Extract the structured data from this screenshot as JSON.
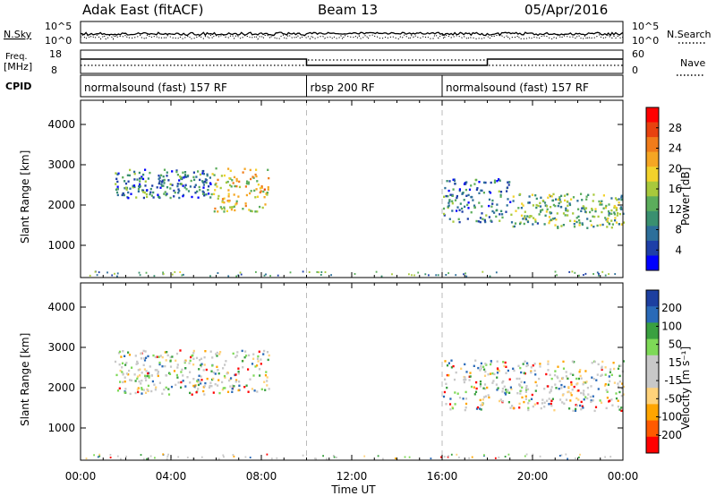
{
  "header": {
    "site": "Adak East (fitACF)",
    "beam": "Beam 13",
    "date": "05/Apr/2016"
  },
  "strips": {
    "nsky_label": "N.Sky",
    "nsky_ticks": [
      "10^5",
      "10^0"
    ],
    "nsearch_label": "N.Search",
    "nsearch_ticks": [
      "10^5",
      "10^0"
    ],
    "freq_label_line1": "Freq.",
    "freq_label_line2": "[MHz]",
    "freq_ticks": [
      "18",
      "8"
    ],
    "nave_label": "Nave",
    "nave_ticks": [
      "60",
      "0"
    ],
    "cpid_label": "CPID",
    "cpid_segments": [
      {
        "start_hour": 0,
        "end_hour": 10,
        "label": "normalsound (fast) 157 RF"
      },
      {
        "start_hour": 10,
        "end_hour": 16,
        "label": "rbsp 200 RF"
      },
      {
        "start_hour": 16,
        "end_hour": 24,
        "label": "normalsound (fast) 157 RF"
      }
    ]
  },
  "chart_data": [
    {
      "type": "heatmap",
      "name": "power",
      "xlabel": "Time UT",
      "ylabel": "Slant Range [km]",
      "x_ticks": [
        "00:00",
        "04:00",
        "08:00",
        "12:00",
        "16:00",
        "20:00",
        "00:00"
      ],
      "xlim_hours": [
        0,
        24
      ],
      "y_ticks": [
        1000,
        2000,
        3000,
        4000
      ],
      "ylim_km": [
        200,
        4600
      ],
      "colorbar": {
        "label": "Power [dB]",
        "ticks": [
          "28",
          "24",
          "20",
          "16",
          "12",
          "8",
          "4"
        ],
        "range": [
          0,
          30
        ],
        "colors": [
          "#0000ff",
          "#1e3fa8",
          "#2d6f9a",
          "#3a9070",
          "#5cad5c",
          "#a8c93c",
          "#f2d22c",
          "#f5a623",
          "#f07c1a",
          "#e8420f",
          "#ff0000"
        ]
      },
      "echo_regions": [
        {
          "start_hour": 1.5,
          "end_hour": 5.8,
          "min_km": 2200,
          "max_km": 2900,
          "typical_value": 8
        },
        {
          "start_hour": 5.8,
          "end_hour": 8.3,
          "min_km": 1850,
          "max_km": 2950,
          "typical_value": 18
        },
        {
          "start_hour": 16.0,
          "end_hour": 19.0,
          "min_km": 1600,
          "max_km": 2700,
          "typical_value": 8
        },
        {
          "start_hour": 19.0,
          "end_hour": 24.0,
          "min_km": 1450,
          "max_km": 2300,
          "typical_value": 12
        }
      ]
    },
    {
      "type": "heatmap",
      "name": "velocity",
      "xlabel": "Time UT",
      "ylabel": "Slant Range [km]",
      "x_ticks": [
        "00:00",
        "04:00",
        "08:00",
        "12:00",
        "16:00",
        "20:00",
        "00:00"
      ],
      "xlim_hours": [
        0,
        24
      ],
      "y_ticks": [
        1000,
        2000,
        3000,
        4000
      ],
      "ylim_km": [
        200,
        4600
      ],
      "colorbar": {
        "label": "Velocity [m s⁻¹]",
        "ticks": [
          "200",
          "100",
          "50",
          "15",
          "-15",
          "-50",
          "-100",
          "-200"
        ],
        "range": [
          -250,
          250
        ],
        "colors": [
          "#ff0000",
          "#ff5a00",
          "#ffa500",
          "#ffd27a",
          "#c8c8c8",
          "#c8c8c8",
          "#7ed957",
          "#3aa040",
          "#2a6ab8",
          "#1d3fa0"
        ]
      },
      "echo_regions": [
        {
          "start_hour": 1.5,
          "end_hour": 8.3,
          "min_km": 1850,
          "max_km": 2950,
          "typical_value": 0
        },
        {
          "start_hour": 16.0,
          "end_hour": 24.0,
          "min_km": 1450,
          "max_km": 2700,
          "typical_value": 0
        }
      ]
    }
  ]
}
